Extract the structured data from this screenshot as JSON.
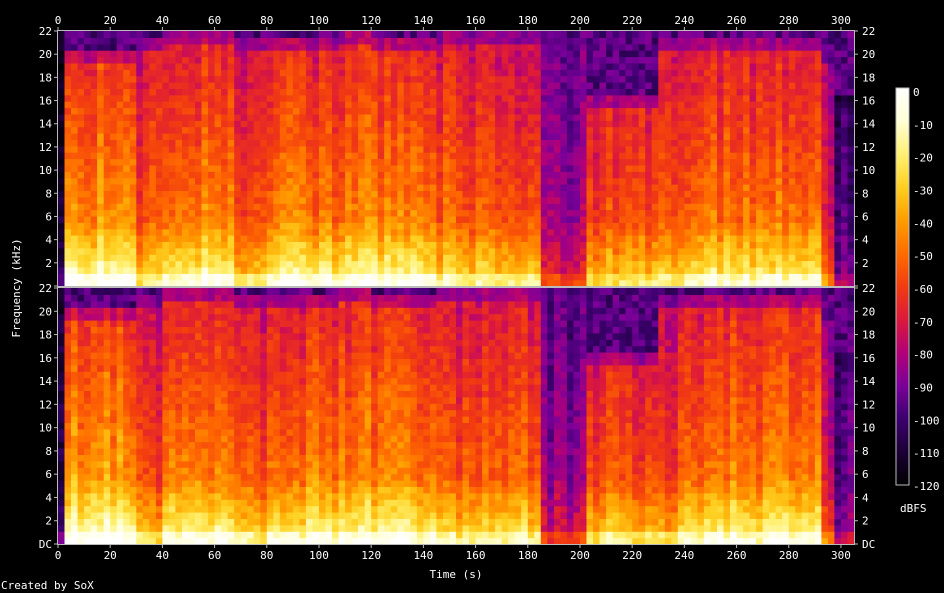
{
  "chart_data": {
    "type": "heatmap",
    "title": "",
    "xlabel": "Time (s)",
    "ylabel": "Frequency (kHz)",
    "xlim": [
      0,
      305
    ],
    "ylim": [
      0,
      22
    ],
    "x_ticks": [
      0,
      20,
      40,
      60,
      80,
      100,
      120,
      140,
      160,
      180,
      200,
      220,
      240,
      260,
      280,
      300
    ],
    "x_tick_labels": [
      "0",
      "20",
      "40",
      "60",
      "80",
      "100",
      "120",
      "140",
      "160",
      "180",
      "200",
      "220",
      "240",
      "260",
      "280",
      "300"
    ],
    "y_ticks": [
      0,
      2,
      4,
      6,
      8,
      10,
      12,
      14,
      16,
      18,
      20,
      22
    ],
    "y_tick_labels_top": [
      "22",
      "2",
      "4",
      "6",
      "8",
      "10",
      "12",
      "14",
      "16",
      "18",
      "20",
      "22"
    ],
    "y_tick_labels_bottom": [
      "DC",
      "2",
      "4",
      "6",
      "8",
      "10",
      "12",
      "14",
      "16",
      "18",
      "20",
      "22"
    ],
    "channels": 2,
    "colorbar": {
      "label": "dBFS",
      "ticks": [
        0,
        -10,
        -20,
        -30,
        -40,
        -50,
        -60,
        -70,
        -80,
        -90,
        -100,
        -110,
        -120
      ],
      "tick_labels": [
        "0",
        "-10",
        "-20",
        "-30",
        "-40",
        "-50",
        "-60",
        "-70",
        "-80",
        "-90",
        "-100",
        "-110",
        "-120"
      ],
      "range": [
        -120,
        0
      ],
      "colors": [
        "#000000",
        "#1a0033",
        "#3d0070",
        "#7a0099",
        "#b0007a",
        "#dd1a3a",
        "#f23c10",
        "#ff6a00",
        "#ff9f00",
        "#ffcf20",
        "#fff070",
        "#ffffd8",
        "#ffffff"
      ]
    },
    "segments": [
      {
        "t0": 0,
        "t1": 2,
        "energy": 0.2,
        "cutoff": 22
      },
      {
        "t0": 2,
        "t1": 28,
        "energy": 1.0,
        "cutoff": 20
      },
      {
        "t0": 28,
        "t1": 40,
        "energy": 0.8,
        "cutoff": 21
      },
      {
        "t0": 40,
        "t1": 66,
        "energy": 0.95,
        "cutoff": 21.5
      },
      {
        "t0": 66,
        "t1": 78,
        "energy": 0.8,
        "cutoff": 21
      },
      {
        "t0": 78,
        "t1": 106,
        "energy": 0.93,
        "cutoff": 21
      },
      {
        "t0": 106,
        "t1": 118,
        "energy": 0.95,
        "cutoff": 21.5
      },
      {
        "t0": 118,
        "t1": 145,
        "energy": 0.93,
        "cutoff": 21
      },
      {
        "t0": 145,
        "t1": 183,
        "energy": 0.85,
        "cutoff": 21.5
      },
      {
        "t0": 183,
        "t1": 201,
        "energy": 0.45,
        "cutoff": 22
      },
      {
        "t0": 201,
        "t1": 228,
        "energy": 0.8,
        "cutoff": 16
      },
      {
        "t0": 228,
        "t1": 238,
        "energy": 0.8,
        "cutoff": 21
      },
      {
        "t0": 238,
        "t1": 292,
        "energy": 0.92,
        "cutoff": 21
      },
      {
        "t0": 292,
        "t1": 297,
        "energy": 0.6,
        "cutoff": 20
      },
      {
        "t0": 297,
        "t1": 305,
        "energy": 0.3,
        "cutoff": 16
      }
    ]
  },
  "footer": {
    "credit": "Created by SoX"
  }
}
